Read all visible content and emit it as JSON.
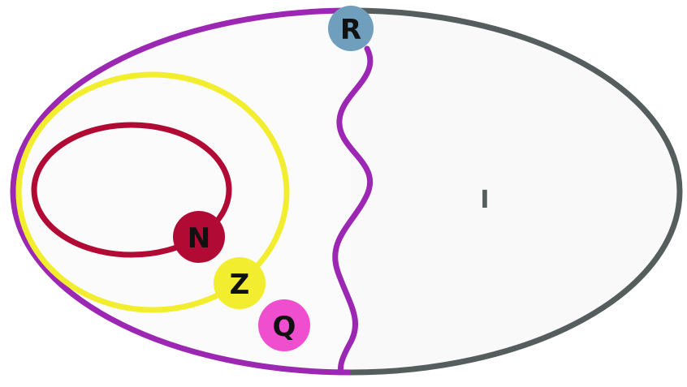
{
  "diagram": {
    "region_label": "I",
    "colors": {
      "background": "#ffffff",
      "left_region_fill": "#fbfbfb",
      "right_region_fill": "#f9f9f9",
      "real_boundary": "#9b27b3",
      "irrational_boundary": "#555e5c",
      "divider": "#9b27b3",
      "integers_ring": "#f2ee2f",
      "naturals_ring": "#b00a35",
      "label_color": "#555e5c"
    },
    "badges": [
      {
        "id": "R",
        "letter": "R",
        "color": "#6f9fbd"
      },
      {
        "id": "N",
        "letter": "N",
        "color": "#b00a35"
      },
      {
        "id": "Z",
        "letter": "Z",
        "color": "#f2ee2f"
      },
      {
        "id": "Q",
        "letter": "Q",
        "color": "#ef4fcf"
      }
    ]
  }
}
